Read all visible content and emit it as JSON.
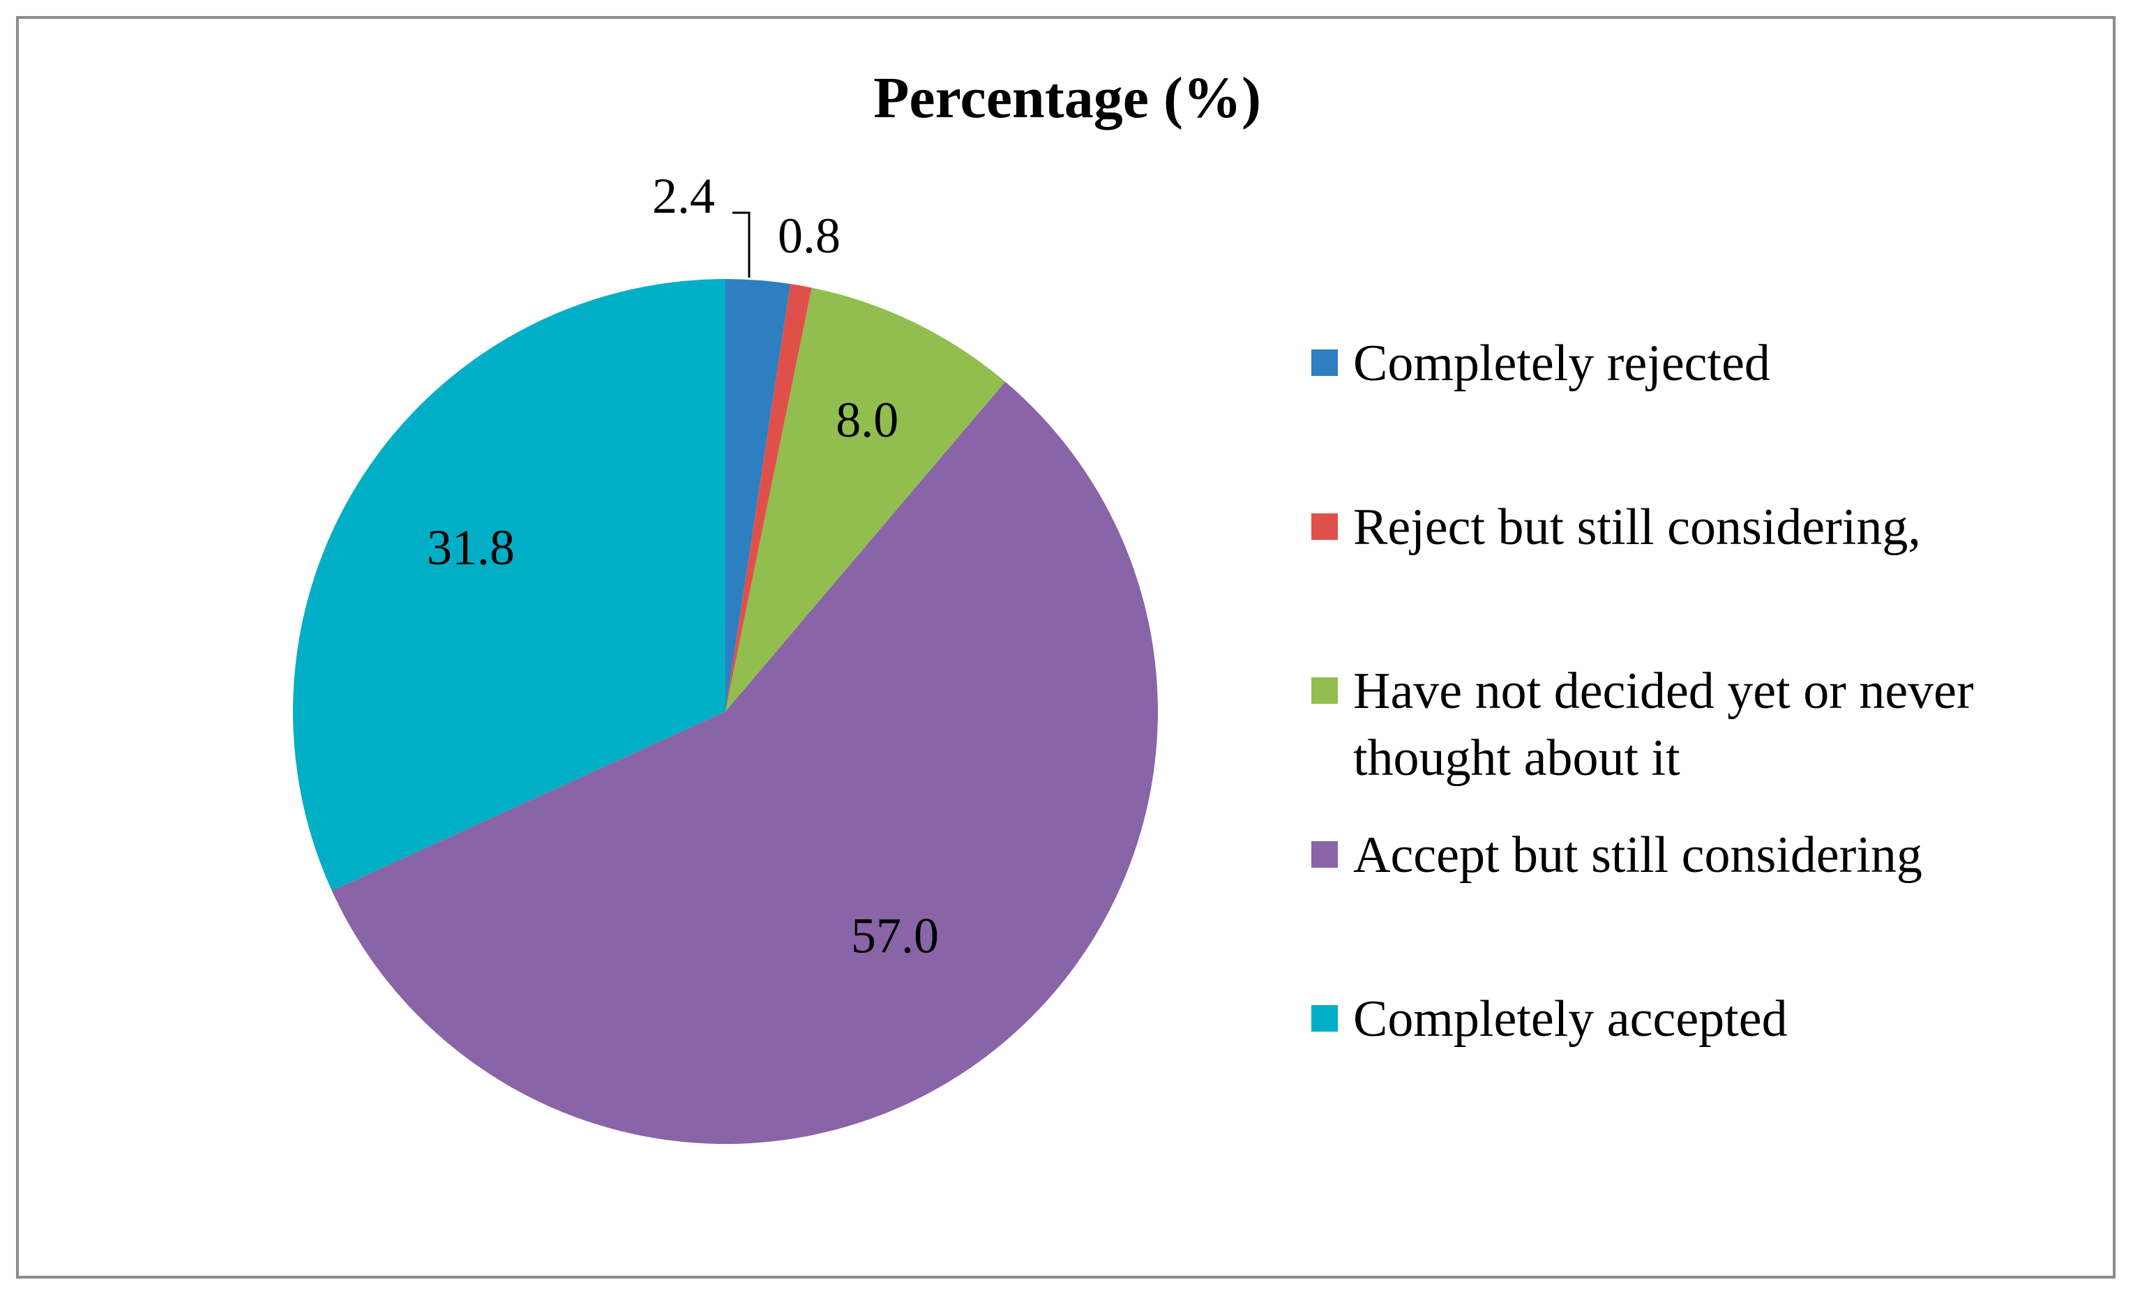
{
  "chart_data": {
    "type": "pie",
    "title": "Percentage (%)",
    "categories": [
      "Completely rejected",
      "Reject but still considering,",
      "Have not decided yet or never thought about it",
      "Accept but still considering",
      "Completely accepted"
    ],
    "values": [
      2.4,
      0.8,
      8.0,
      57.0,
      31.8
    ],
    "value_labels": [
      "2.4",
      "0.8",
      "8.0",
      "57.0",
      "31.8"
    ],
    "colors": [
      "#2e7fc1",
      "#e0504b",
      "#92be50",
      "#8964a6",
      "#00aec6"
    ],
    "legend": {
      "placement": "right",
      "entries": [
        {
          "lines": [
            "Completely rejected"
          ],
          "color": "#2e7fc1"
        },
        {
          "lines": [
            "Reject but still considering,"
          ],
          "color": "#e0504b"
        },
        {
          "lines": [
            "Have not decided yet or never",
            "thought about it"
          ],
          "color": "#92be50"
        },
        {
          "lines": [
            "Accept but still considering"
          ],
          "color": "#8964a6"
        },
        {
          "lines": [
            "Completely accepted"
          ],
          "color": "#00aec6"
        }
      ]
    },
    "start_angle": "12 o'clock",
    "direction": "clockwise"
  }
}
